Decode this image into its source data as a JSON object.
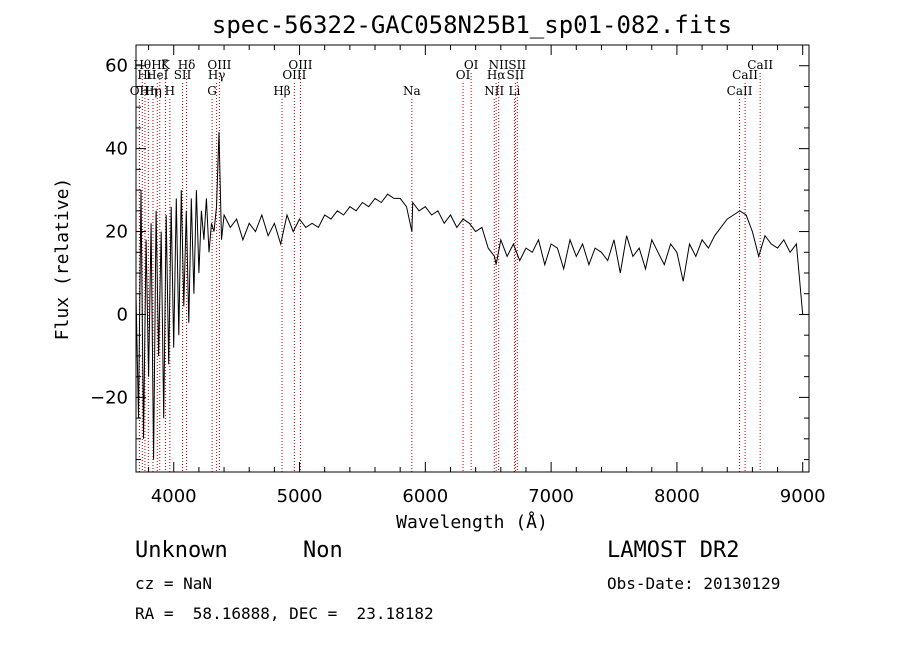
{
  "chart_data": {
    "type": "line",
    "title": "spec-56322-GAC058N25B1_sp01-082.fits",
    "xlabel": "Wavelength (Å)",
    "ylabel": "Flux (relative)",
    "xlim": [
      3700,
      9050
    ],
    "ylim": [
      -38,
      65
    ],
    "x_ticks": [
      4000,
      5000,
      6000,
      7000,
      8000,
      9000
    ],
    "y_ticks": [
      -20,
      0,
      20,
      40,
      60
    ],
    "grid": false,
    "series_color": "#000000",
    "line_marker_color": "#b00000",
    "spectrum": {
      "x": [
        3700,
        3720,
        3740,
        3760,
        3780,
        3800,
        3820,
        3840,
        3860,
        3880,
        3900,
        3920,
        3940,
        3960,
        3980,
        4000,
        4020,
        4040,
        4060,
        4080,
        4100,
        4120,
        4140,
        4160,
        4180,
        4200,
        4220,
        4240,
        4260,
        4280,
        4300,
        4320,
        4340,
        4360,
        4380,
        4400,
        4450,
        4500,
        4550,
        4600,
        4650,
        4700,
        4750,
        4800,
        4850,
        4900,
        4950,
        5000,
        5050,
        5100,
        5150,
        5200,
        5250,
        5300,
        5350,
        5400,
        5450,
        5500,
        5550,
        5600,
        5650,
        5700,
        5750,
        5800,
        5850,
        5893,
        5900,
        5950,
        6000,
        6050,
        6100,
        6150,
        6200,
        6250,
        6300,
        6350,
        6400,
        6450,
        6500,
        6550,
        6563,
        6600,
        6650,
        6700,
        6750,
        6800,
        6850,
        6900,
        6950,
        7000,
        7050,
        7100,
        7150,
        7200,
        7250,
        7300,
        7350,
        7400,
        7450,
        7500,
        7550,
        7600,
        7650,
        7700,
        7750,
        7800,
        7850,
        7900,
        7950,
        8000,
        8050,
        8100,
        8150,
        8200,
        8250,
        8300,
        8350,
        8400,
        8450,
        8500,
        8550,
        8600,
        8650,
        8700,
        8750,
        8800,
        8850,
        8900,
        8950,
        9000
      ],
      "y": [
        5,
        -25,
        30,
        -30,
        18,
        -15,
        22,
        -35,
        25,
        -10,
        20,
        -25,
        24,
        -12,
        26,
        -8,
        28,
        -5,
        30,
        2,
        25,
        -2,
        28,
        5,
        30,
        10,
        25,
        18,
        28,
        15,
        22,
        20,
        26,
        44,
        18,
        24,
        21,
        23,
        18,
        22,
        20,
        24,
        19,
        22,
        17,
        24,
        20,
        23,
        21,
        22,
        21,
        24,
        23,
        25,
        24,
        26,
        25,
        27,
        26,
        28,
        27,
        29,
        28,
        28,
        26,
        20,
        27,
        25,
        26,
        24,
        25,
        22,
        24,
        21,
        23,
        22,
        20,
        21,
        16,
        14,
        12,
        18,
        14,
        17,
        13,
        16,
        15,
        18,
        12,
        17,
        16,
        11,
        18,
        14,
        17,
        12,
        16,
        15,
        13,
        18,
        10,
        19,
        14,
        16,
        11,
        18,
        15,
        12,
        17,
        15,
        8,
        17,
        14,
        18,
        16,
        19,
        21,
        23,
        24,
        25,
        24,
        20,
        14,
        19,
        17,
        16,
        18,
        15,
        17,
        0
      ]
    },
    "line_markers": [
      {
        "x": 3727,
        "label": "OII",
        "row": 2
      },
      {
        "x": 3750,
        "label": "Hθ",
        "row": 0
      },
      {
        "x": 3771,
        "label": "Hι",
        "row": 1
      },
      {
        "x": 3798,
        "label": "Hη",
        "row": 2
      },
      {
        "x": 3835,
        "label": "Hη",
        "row": 2
      },
      {
        "x": 3869,
        "label": "HeI",
        "row": 1
      },
      {
        "x": 3889,
        "label": "Hζ",
        "row": 0
      },
      {
        "x": 3934,
        "label": "K",
        "row": 0
      },
      {
        "x": 3969,
        "label": "H",
        "row": 2
      },
      {
        "x": 4070,
        "label": "SII",
        "row": 1
      },
      {
        "x": 4102,
        "label": "Hδ",
        "row": 0
      },
      {
        "x": 4305,
        "label": "G",
        "row": 2
      },
      {
        "x": 4341,
        "label": "Hγ",
        "row": 1
      },
      {
        "x": 4363,
        "label": "OIII",
        "row": 0
      },
      {
        "x": 4861,
        "label": "Hβ",
        "row": 2
      },
      {
        "x": 4959,
        "label": "OIII",
        "row": 1
      },
      {
        "x": 5007,
        "label": "OIII",
        "row": 0
      },
      {
        "x": 5893,
        "label": "Na",
        "row": 2
      },
      {
        "x": 6300,
        "label": "OI",
        "row": 1
      },
      {
        "x": 6364,
        "label": "OI",
        "row": 0
      },
      {
        "x": 6548,
        "label": "NII",
        "row": 2
      },
      {
        "x": 6563,
        "label": "Hα",
        "row": 1
      },
      {
        "x": 6583,
        "label": "NII",
        "row": 0
      },
      {
        "x": 6708,
        "label": "Li",
        "row": 2
      },
      {
        "x": 6716,
        "label": "SII",
        "row": 1
      },
      {
        "x": 6731,
        "label": "SII",
        "row": 0
      },
      {
        "x": 8498,
        "label": "CaII",
        "row": 2
      },
      {
        "x": 8542,
        "label": "CaII",
        "row": 1
      },
      {
        "x": 8662,
        "label": "CaII",
        "row": 0
      }
    ]
  },
  "info": {
    "class": "Unknown",
    "subclass": "Non",
    "survey": "LAMOST DR2",
    "redshift": "cz = NaN",
    "obs_date": "Obs-Date: 20130129",
    "coords": "RA =  58.16888, DEC =  23.18182"
  }
}
